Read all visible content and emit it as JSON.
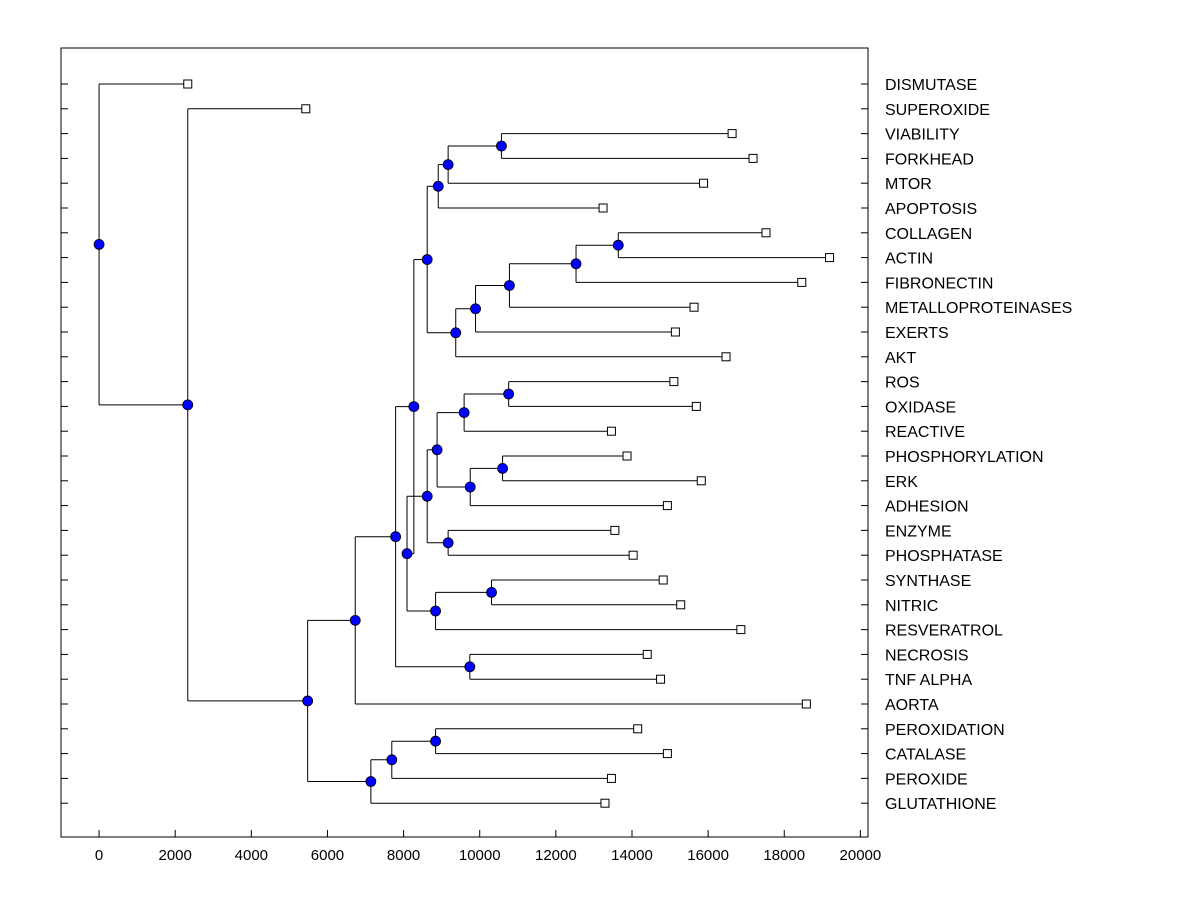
{
  "chart_data": {
    "type": "dendrogram",
    "title": "",
    "xlabel": "",
    "ylabel": "",
    "xlim": [
      -1000,
      20200
    ],
    "x_ticks": [
      0,
      2000,
      4000,
      6000,
      8000,
      10000,
      12000,
      14000,
      16000,
      18000,
      20000
    ],
    "x_tick_labels": [
      "0",
      "2000",
      "4000",
      "6000",
      "8000",
      "10000",
      "12000",
      "14000",
      "16000",
      "18000",
      "20000"
    ],
    "leaves": [
      {
        "label": "DISMUTASE",
        "x": 2330
      },
      {
        "label": "SUPEROXIDE",
        "x": 5430
      },
      {
        "label": "VIABILITY",
        "x": 16630
      },
      {
        "label": "FORKHEAD",
        "x": 17180
      },
      {
        "label": "MTOR",
        "x": 15880
      },
      {
        "label": "APOPTOSIS",
        "x": 13240
      },
      {
        "label": "COLLAGEN",
        "x": 17520
      },
      {
        "label": "ACTIN",
        "x": 19190
      },
      {
        "label": "FIBRONECTIN",
        "x": 18460
      },
      {
        "label": "METALLOPROTEINASES",
        "x": 15630
      },
      {
        "label": "EXERTS",
        "x": 15140
      },
      {
        "label": "AKT",
        "x": 16470
      },
      {
        "label": "ROS",
        "x": 15100
      },
      {
        "label": "OXIDASE",
        "x": 15690
      },
      {
        "label": "REACTIVE",
        "x": 13460
      },
      {
        "label": "PHOSPHORYLATION",
        "x": 13870
      },
      {
        "label": "ERK",
        "x": 15820
      },
      {
        "label": "ADHESION",
        "x": 14930
      },
      {
        "label": "ENZYME",
        "x": 13550
      },
      {
        "label": "PHOSPHATASE",
        "x": 14030
      },
      {
        "label": "SYNTHASE",
        "x": 14820
      },
      {
        "label": "NITRIC",
        "x": 15280
      },
      {
        "label": "RESVERATROL",
        "x": 16860
      },
      {
        "label": "NECROSIS",
        "x": 14400
      },
      {
        "label": "TNF ALPHA",
        "x": 14750
      },
      {
        "label": "AORTA",
        "x": 18580
      },
      {
        "label": "PEROXIDATION",
        "x": 14150
      },
      {
        "label": "CATALASE",
        "x": 14930
      },
      {
        "label": "PEROXIDE",
        "x": 13460
      },
      {
        "label": "GLUTATHIONE",
        "x": 13290
      }
    ],
    "merges": [
      {
        "id": "n1",
        "x": 10570,
        "children": [
          "VIABILITY",
          "FORKHEAD"
        ]
      },
      {
        "id": "n2",
        "x": 9170,
        "children": [
          "n1",
          "MTOR"
        ]
      },
      {
        "id": "n3",
        "x": 8910,
        "children": [
          "n2",
          "APOPTOSIS"
        ]
      },
      {
        "id": "n4",
        "x": 13640,
        "children": [
          "COLLAGEN",
          "ACTIN"
        ]
      },
      {
        "id": "n5",
        "x": 12530,
        "children": [
          "n4",
          "FIBRONECTIN"
        ]
      },
      {
        "id": "n6",
        "x": 10780,
        "children": [
          "n5",
          "METALLOPROTEINASES"
        ]
      },
      {
        "id": "n7",
        "x": 9890,
        "children": [
          "n6",
          "EXERTS"
        ]
      },
      {
        "id": "n8",
        "x": 9370,
        "children": [
          "n7",
          "AKT"
        ]
      },
      {
        "id": "n9",
        "x": 8620,
        "children": [
          "n3",
          "n8"
        ]
      },
      {
        "id": "n10",
        "x": 10760,
        "children": [
          "ROS",
          "OXIDASE"
        ]
      },
      {
        "id": "n11",
        "x": 9590,
        "children": [
          "n10",
          "REACTIVE"
        ]
      },
      {
        "id": "n12",
        "x": 10600,
        "children": [
          "PHOSPHORYLATION",
          "ERK"
        ]
      },
      {
        "id": "n13",
        "x": 9750,
        "children": [
          "n12",
          "ADHESION"
        ]
      },
      {
        "id": "n14",
        "x": 8880,
        "children": [
          "n11",
          "n13"
        ]
      },
      {
        "id": "n15",
        "x": 9170,
        "children": [
          "ENZYME",
          "PHOSPHATASE"
        ]
      },
      {
        "id": "n16",
        "x": 8620,
        "children": [
          "n14",
          "n15"
        ]
      },
      {
        "id": "n17",
        "x": 10310,
        "children": [
          "SYNTHASE",
          "NITRIC"
        ]
      },
      {
        "id": "n18",
        "x": 8840,
        "children": [
          "n17",
          "RESVERATROL"
        ]
      },
      {
        "id": "n19",
        "x": 8090,
        "children": [
          "n16",
          "n18"
        ]
      },
      {
        "id": "n20",
        "x": 8270,
        "children": [
          "n9",
          "n19"
        ]
      },
      {
        "id": "n21",
        "x": 9740,
        "children": [
          "NECROSIS",
          "TNF ALPHA"
        ]
      },
      {
        "id": "n22",
        "x": 7790,
        "children": [
          "n20",
          "n21"
        ]
      },
      {
        "id": "n23",
        "x": 6730,
        "children": [
          "n22",
          "AORTA"
        ]
      },
      {
        "id": "n24",
        "x": 8840,
        "children": [
          "PEROXIDATION",
          "CATALASE"
        ]
      },
      {
        "id": "n25",
        "x": 7690,
        "children": [
          "n24",
          "PEROXIDE"
        ]
      },
      {
        "id": "n26",
        "x": 7140,
        "children": [
          "n25",
          "GLUTATHIONE"
        ]
      },
      {
        "id": "n27",
        "x": 5480,
        "children": [
          "n23",
          "n26"
        ]
      },
      {
        "id": "n28",
        "x": 2330,
        "children": [
          "SUPEROXIDE",
          "n27"
        ]
      },
      {
        "id": "n29",
        "x": 0,
        "children": [
          "DISMUTASE",
          "n28"
        ]
      }
    ],
    "colors": {
      "node": "#0000ff",
      "line": "#000000",
      "leaf_fill": "#ffffff"
    }
  }
}
